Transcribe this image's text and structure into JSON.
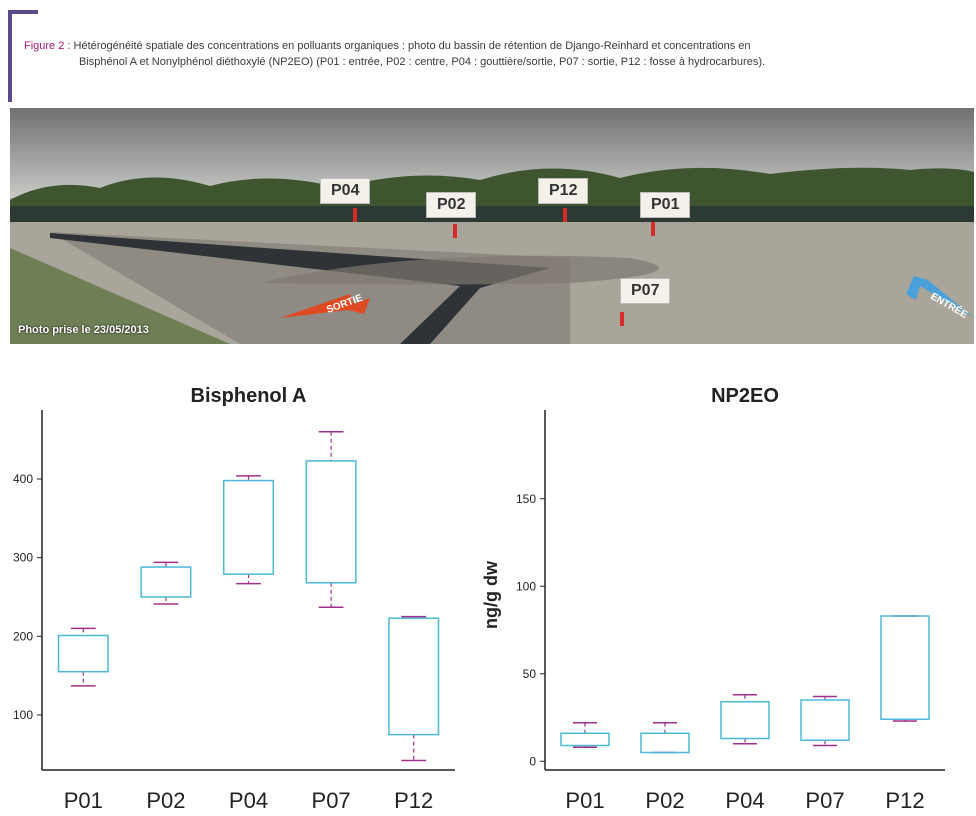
{
  "caption": {
    "label": "Figure 2 :",
    "line1": "Hétérogénéité spatiale des concentrations en polluants organiques : photo du bassin de rétention de Django-Reinhard et concentrations en",
    "line2": "Bisphénol A et Nonylphénol diéthoxylé (NP2EO) (P01 : entrée, P02 : centre, P04 : gouttière/sortie, P07 : sortie, P12 : fosse à hydrocarbures)."
  },
  "photo": {
    "date_text": "Photo prise le 23/05/2013",
    "sortie_label": "SORTIE",
    "entree_label": "ENTRÉE",
    "tags": [
      "P04",
      "P02",
      "P12",
      "P01",
      "P07"
    ]
  },
  "colors": {
    "box": "#4db8d8",
    "whisker": "#a0308c",
    "arrow_red": "#e04a22",
    "arrow_blue": "#4aa0d8"
  },
  "chart_data": [
    {
      "type": "box",
      "title": "Bisphenol A",
      "categories": [
        "P01",
        "P02",
        "P04",
        "P07",
        "P12"
      ],
      "ylabel": "",
      "ylim": [
        30,
        475
      ],
      "yticks": [
        100,
        200,
        300,
        400
      ],
      "boxes": [
        {
          "min": 137,
          "q1": 155,
          "q3": 201,
          "max": 210
        },
        {
          "min": 241,
          "q1": 250,
          "q3": 288,
          "max": 294
        },
        {
          "min": 267,
          "q1": 279,
          "q3": 398,
          "max": 404
        },
        {
          "min": 237,
          "q1": 268,
          "q3": 423,
          "max": 460
        },
        {
          "min": 42,
          "q1": 75,
          "q3": 223,
          "max": 225
        }
      ]
    },
    {
      "type": "box",
      "title": "NP2EO",
      "categories": [
        "P01",
        "P02",
        "P04",
        "P07",
        "P12"
      ],
      "ylabel": "ng/g dw",
      "ylim": [
        -5,
        195
      ],
      "yticks": [
        0,
        50,
        100,
        150
      ],
      "boxes": [
        {
          "min": 8,
          "q1": 9,
          "q3": 16,
          "max": 22
        },
        {
          "min": 5,
          "q1": 5,
          "q3": 16,
          "max": 22
        },
        {
          "min": 10,
          "q1": 13,
          "q3": 34,
          "max": 38
        },
        {
          "min": 9,
          "q1": 12,
          "q3": 35,
          "max": 37
        },
        {
          "min": 23,
          "q1": 24,
          "q3": 83,
          "max": 83
        }
      ]
    }
  ]
}
